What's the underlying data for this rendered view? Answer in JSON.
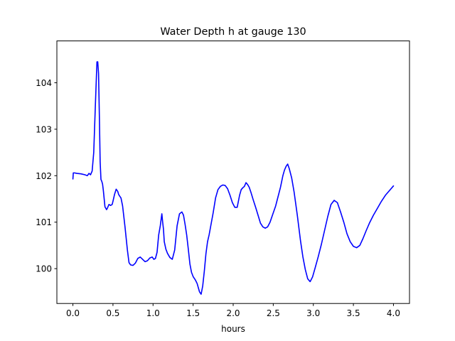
{
  "colors": {
    "line": "#0000ff",
    "axes": "#000000",
    "background": "#ffffff"
  },
  "chart_data": {
    "type": "line",
    "title": "Water Depth h at gauge 130",
    "xlabel": "hours",
    "ylabel": "",
    "xlim": [
      -0.2,
      4.2
    ],
    "ylim": [
      99.25,
      104.9
    ],
    "grid": false,
    "xticks": [
      0.0,
      0.5,
      1.0,
      1.5,
      2.0,
      2.5,
      3.0,
      3.5,
      4.0
    ],
    "xtick_labels": [
      "0.0",
      "0.5",
      "1.0",
      "1.5",
      "2.0",
      "2.5",
      "3.0",
      "3.5",
      "4.0"
    ],
    "yticks": [
      100,
      101,
      102,
      103,
      104
    ],
    "ytick_labels": [
      "100",
      "101",
      "102",
      "103",
      "104"
    ],
    "series": [
      {
        "color": "#0000ff",
        "x": [
          0.0,
          0.005,
          0.02,
          0.05,
          0.1,
          0.15,
          0.18,
          0.2,
          0.22,
          0.24,
          0.26,
          0.28,
          0.3,
          0.31,
          0.32,
          0.33,
          0.34,
          0.35,
          0.36,
          0.37,
          0.38,
          0.4,
          0.42,
          0.43,
          0.45,
          0.47,
          0.49,
          0.5,
          0.52,
          0.54,
          0.56,
          0.57,
          0.58,
          0.6,
          0.62,
          0.65,
          0.68,
          0.7,
          0.72,
          0.75,
          0.78,
          0.81,
          0.84,
          0.87,
          0.9,
          0.93,
          0.96,
          0.99,
          1.01,
          1.03,
          1.05,
          1.07,
          1.09,
          1.11,
          1.12,
          1.13,
          1.14,
          1.16,
          1.18,
          1.21,
          1.24,
          1.27,
          1.3,
          1.33,
          1.36,
          1.38,
          1.4,
          1.42,
          1.44,
          1.46,
          1.48,
          1.5,
          1.53,
          1.55,
          1.58,
          1.6,
          1.62,
          1.64,
          1.66,
          1.68,
          1.7,
          1.72,
          1.75,
          1.78,
          1.81,
          1.84,
          1.87,
          1.9,
          1.93,
          1.96,
          1.99,
          2.02,
          2.05,
          2.08,
          2.1,
          2.12,
          2.14,
          2.16,
          2.18,
          2.2,
          2.22,
          2.25,
          2.28,
          2.31,
          2.34,
          2.37,
          2.4,
          2.43,
          2.46,
          2.5,
          2.53,
          2.56,
          2.59,
          2.62,
          2.64,
          2.66,
          2.68,
          2.7,
          2.73,
          2.76,
          2.8,
          2.84,
          2.87,
          2.9,
          2.93,
          2.96,
          2.99,
          3.02,
          3.06,
          3.1,
          3.14,
          3.18,
          3.22,
          3.26,
          3.3,
          3.34,
          3.38,
          3.42,
          3.46,
          3.5,
          3.54,
          3.58,
          3.62,
          3.66,
          3.7,
          3.75,
          3.8,
          3.85,
          3.9,
          3.95,
          4.0
        ],
        "y": [
          101.93,
          102.06,
          102.06,
          102.05,
          102.04,
          102.02,
          102.0,
          102.05,
          102.02,
          102.1,
          102.5,
          103.5,
          104.45,
          104.45,
          104.2,
          103.3,
          102.3,
          101.92,
          101.88,
          101.82,
          101.68,
          101.33,
          101.27,
          101.3,
          101.38,
          101.36,
          101.38,
          101.45,
          101.6,
          101.71,
          101.66,
          101.6,
          101.57,
          101.52,
          101.35,
          100.9,
          100.4,
          100.13,
          100.08,
          100.07,
          100.12,
          100.22,
          100.25,
          100.2,
          100.15,
          100.17,
          100.23,
          100.25,
          100.2,
          100.22,
          100.35,
          100.72,
          100.92,
          101.18,
          101.0,
          100.85,
          100.58,
          100.42,
          100.33,
          100.24,
          100.2,
          100.4,
          100.92,
          101.18,
          101.22,
          101.15,
          100.95,
          100.72,
          100.42,
          100.1,
          99.92,
          99.83,
          99.75,
          99.68,
          99.5,
          99.45,
          99.63,
          99.95,
          100.32,
          100.58,
          100.73,
          100.92,
          101.2,
          101.52,
          101.7,
          101.77,
          101.8,
          101.79,
          101.72,
          101.58,
          101.42,
          101.32,
          101.32,
          101.58,
          101.7,
          101.74,
          101.77,
          101.85,
          101.81,
          101.75,
          101.65,
          101.48,
          101.32,
          101.15,
          100.98,
          100.9,
          100.87,
          100.9,
          101.0,
          101.2,
          101.35,
          101.55,
          101.75,
          102.0,
          102.12,
          102.2,
          102.25,
          102.15,
          101.95,
          101.65,
          101.15,
          100.6,
          100.25,
          99.98,
          99.78,
          99.72,
          99.82,
          100.0,
          100.25,
          100.52,
          100.82,
          101.12,
          101.38,
          101.47,
          101.42,
          101.22,
          101.0,
          100.75,
          100.58,
          100.48,
          100.45,
          100.5,
          100.65,
          100.82,
          100.98,
          101.15,
          101.3,
          101.45,
          101.58,
          101.68,
          101.78
        ]
      }
    ]
  }
}
